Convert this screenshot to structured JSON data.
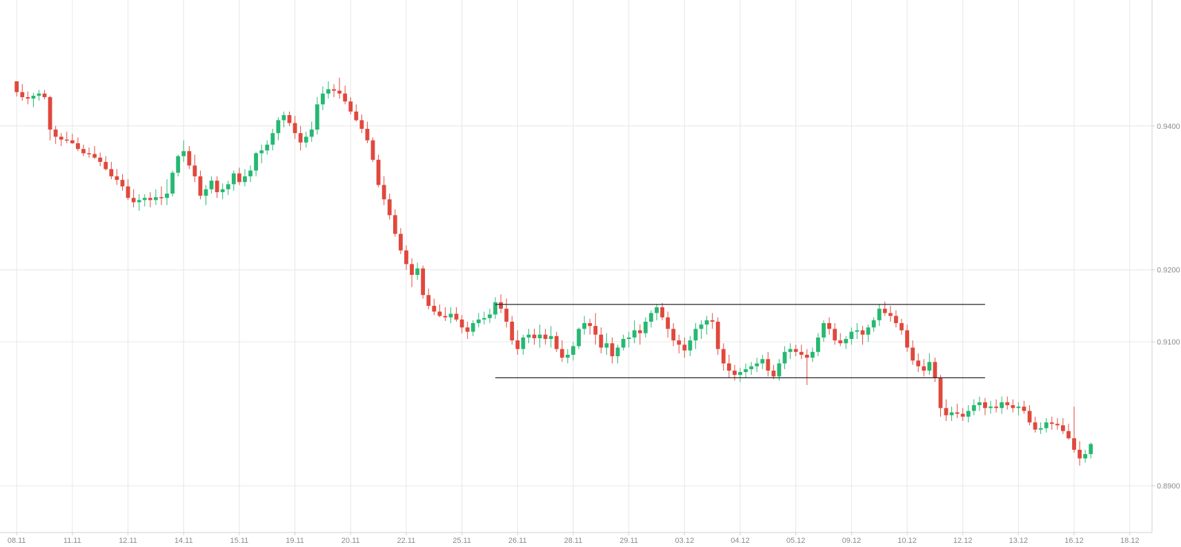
{
  "chart_data": {
    "type": "candlestick",
    "colors": {
      "up": "#26b872",
      "down": "#e0483d",
      "grid": "#e6e6e6",
      "axis": "#cfcfcf",
      "tick_text": "#8a8a8a",
      "level_line": "#222222"
    },
    "ylim": [
      0.8835,
      0.9575
    ],
    "yticks": [
      "0.9400",
      "0.9200",
      "0.9100",
      "0.8900"
    ],
    "y_tick_values": [
      0.94,
      0.92,
      0.91,
      0.89
    ],
    "xlim": [
      -3,
      204
    ],
    "xticks": [
      {
        "label": "08.11",
        "index": 0
      },
      {
        "label": "11.11",
        "index": 10
      },
      {
        "label": "12.11",
        "index": 20
      },
      {
        "label": "14.11",
        "index": 30
      },
      {
        "label": "15.11",
        "index": 40
      },
      {
        "label": "19.11",
        "index": 50
      },
      {
        "label": "20.11",
        "index": 60
      },
      {
        "label": "22.11",
        "index": 70
      },
      {
        "label": "25.11",
        "index": 80
      },
      {
        "label": "26.11",
        "index": 90
      },
      {
        "label": "28.11",
        "index": 100
      },
      {
        "label": "29.11",
        "index": 110
      },
      {
        "label": "03.12",
        "index": 120
      },
      {
        "label": "04.12",
        "index": 130
      },
      {
        "label": "05.12",
        "index": 140
      },
      {
        "label": "09.12",
        "index": 150
      },
      {
        "label": "10.12",
        "index": 160
      },
      {
        "label": "12.12",
        "index": 170
      },
      {
        "label": "13.12",
        "index": 180
      },
      {
        "label": "16.12",
        "index": 190
      },
      {
        "label": "18.12",
        "index": 200
      }
    ],
    "levels": [
      {
        "value": 0.9152,
        "from_index": 86,
        "to_index": 174
      },
      {
        "value": 0.905,
        "from_index": 86,
        "to_index": 174
      }
    ],
    "candles": [
      [
        0.9462,
        0.9462,
        0.9441,
        0.9447
      ],
      [
        0.9447,
        0.9458,
        0.9435,
        0.944
      ],
      [
        0.944,
        0.9448,
        0.943,
        0.9438
      ],
      [
        0.9438,
        0.9446,
        0.9426,
        0.9442
      ],
      [
        0.9442,
        0.945,
        0.9435,
        0.9445
      ],
      [
        0.9445,
        0.945,
        0.9437,
        0.944
      ],
      [
        0.944,
        0.9442,
        0.938,
        0.9395
      ],
      [
        0.9395,
        0.94,
        0.9375,
        0.9385
      ],
      [
        0.9385,
        0.939,
        0.9372,
        0.9381
      ],
      [
        0.9381,
        0.9392,
        0.9376,
        0.938
      ],
      [
        0.938,
        0.9389,
        0.9375,
        0.9376
      ],
      [
        0.9376,
        0.9384,
        0.9365,
        0.9368
      ],
      [
        0.9368,
        0.9374,
        0.9358,
        0.9362
      ],
      [
        0.9362,
        0.937,
        0.9356,
        0.9361
      ],
      [
        0.9361,
        0.9372,
        0.9354,
        0.9356
      ],
      [
        0.9356,
        0.9363,
        0.9344,
        0.935
      ],
      [
        0.935,
        0.9358,
        0.9338,
        0.934
      ],
      [
        0.934,
        0.935,
        0.9326,
        0.933
      ],
      [
        0.933,
        0.934,
        0.9318,
        0.9325
      ],
      [
        0.9325,
        0.9333,
        0.931,
        0.9316
      ],
      [
        0.9316,
        0.9326,
        0.9297,
        0.93
      ],
      [
        0.93,
        0.9312,
        0.9287,
        0.9294
      ],
      [
        0.9294,
        0.9305,
        0.9282,
        0.9297
      ],
      [
        0.9297,
        0.9305,
        0.9288,
        0.93
      ],
      [
        0.93,
        0.9308,
        0.9287,
        0.9297
      ],
      [
        0.9297,
        0.9312,
        0.929,
        0.9301
      ],
      [
        0.9301,
        0.9316,
        0.929,
        0.93
      ],
      [
        0.93,
        0.9326,
        0.929,
        0.9306
      ],
      [
        0.9306,
        0.9338,
        0.9302,
        0.9335
      ],
      [
        0.9335,
        0.936,
        0.933,
        0.9358
      ],
      [
        0.9358,
        0.938,
        0.935,
        0.9365
      ],
      [
        0.9365,
        0.9372,
        0.934,
        0.9345
      ],
      [
        0.9345,
        0.936,
        0.9322,
        0.933
      ],
      [
        0.933,
        0.9338,
        0.9298,
        0.9303
      ],
      [
        0.9303,
        0.9318,
        0.929,
        0.9312
      ],
      [
        0.9312,
        0.933,
        0.9306,
        0.9324
      ],
      [
        0.9324,
        0.933,
        0.93,
        0.9308
      ],
      [
        0.9308,
        0.932,
        0.9298,
        0.9312
      ],
      [
        0.9312,
        0.9324,
        0.9304,
        0.9319
      ],
      [
        0.9319,
        0.9338,
        0.931,
        0.9334
      ],
      [
        0.9334,
        0.9342,
        0.9318,
        0.9322
      ],
      [
        0.9322,
        0.934,
        0.9316,
        0.933
      ],
      [
        0.933,
        0.9345,
        0.9322,
        0.9338
      ],
      [
        0.9338,
        0.9364,
        0.933,
        0.9362
      ],
      [
        0.9362,
        0.9374,
        0.9348,
        0.9366
      ],
      [
        0.9366,
        0.938,
        0.936,
        0.9374
      ],
      [
        0.9374,
        0.9396,
        0.9366,
        0.939
      ],
      [
        0.939,
        0.9412,
        0.938,
        0.9408
      ],
      [
        0.9408,
        0.942,
        0.9398,
        0.9415
      ],
      [
        0.9415,
        0.942,
        0.94,
        0.9404
      ],
      [
        0.9404,
        0.9414,
        0.9382,
        0.939
      ],
      [
        0.939,
        0.94,
        0.9366,
        0.9377
      ],
      [
        0.9377,
        0.9392,
        0.937,
        0.9385
      ],
      [
        0.9385,
        0.9406,
        0.9378,
        0.9395
      ],
      [
        0.9395,
        0.944,
        0.9388,
        0.943
      ],
      [
        0.943,
        0.9455,
        0.9422,
        0.9445
      ],
      [
        0.9445,
        0.9462,
        0.9438,
        0.9451
      ],
      [
        0.9451,
        0.9458,
        0.944,
        0.9449
      ],
      [
        0.9449,
        0.9467,
        0.9438,
        0.9445
      ],
      [
        0.9445,
        0.9456,
        0.943,
        0.9434
      ],
      [
        0.9434,
        0.944,
        0.9416,
        0.942
      ],
      [
        0.942,
        0.943,
        0.9406,
        0.9408
      ],
      [
        0.9408,
        0.9416,
        0.939,
        0.9396
      ],
      [
        0.9396,
        0.9406,
        0.9376,
        0.938
      ],
      [
        0.938,
        0.9384,
        0.935,
        0.9353
      ],
      [
        0.9353,
        0.936,
        0.9315,
        0.9318
      ],
      [
        0.9318,
        0.933,
        0.929,
        0.9298
      ],
      [
        0.9298,
        0.9306,
        0.927,
        0.9276
      ],
      [
        0.9276,
        0.9284,
        0.9246,
        0.925
      ],
      [
        0.925,
        0.9258,
        0.9222,
        0.9227
      ],
      [
        0.9227,
        0.9234,
        0.92,
        0.9208
      ],
      [
        0.9208,
        0.9216,
        0.9176,
        0.9193
      ],
      [
        0.9193,
        0.921,
        0.9186,
        0.9202
      ],
      [
        0.9202,
        0.9206,
        0.916,
        0.9165
      ],
      [
        0.9165,
        0.9174,
        0.9145,
        0.915
      ],
      [
        0.915,
        0.916,
        0.9137,
        0.9142
      ],
      [
        0.9142,
        0.9152,
        0.9134,
        0.9136
      ],
      [
        0.9136,
        0.9148,
        0.9129,
        0.9134
      ],
      [
        0.9134,
        0.9148,
        0.9126,
        0.9139
      ],
      [
        0.9139,
        0.9148,
        0.9128,
        0.9131
      ],
      [
        0.9131,
        0.9137,
        0.9112,
        0.912
      ],
      [
        0.912,
        0.9128,
        0.9104,
        0.9114
      ],
      [
        0.9114,
        0.913,
        0.9108,
        0.9126
      ],
      [
        0.9126,
        0.914,
        0.912,
        0.9131
      ],
      [
        0.9131,
        0.9142,
        0.9124,
        0.9133
      ],
      [
        0.9133,
        0.9146,
        0.9126,
        0.9138
      ],
      [
        0.9138,
        0.9162,
        0.9132,
        0.9155
      ],
      [
        0.9155,
        0.9166,
        0.914,
        0.9146
      ],
      [
        0.9146,
        0.916,
        0.912,
        0.9128
      ],
      [
        0.9128,
        0.9136,
        0.9096,
        0.9102
      ],
      [
        0.9102,
        0.9116,
        0.9082,
        0.909
      ],
      [
        0.909,
        0.911,
        0.9082,
        0.9106
      ],
      [
        0.9106,
        0.9118,
        0.9098,
        0.911
      ],
      [
        0.911,
        0.9118,
        0.9096,
        0.9105
      ],
      [
        0.9105,
        0.9124,
        0.9092,
        0.911
      ],
      [
        0.911,
        0.9118,
        0.9096,
        0.9104
      ],
      [
        0.9104,
        0.9122,
        0.9092,
        0.9108
      ],
      [
        0.9108,
        0.9114,
        0.9086,
        0.909
      ],
      [
        0.909,
        0.9102,
        0.9072,
        0.9078
      ],
      [
        0.9078,
        0.909,
        0.907,
        0.9082
      ],
      [
        0.9082,
        0.91,
        0.9074,
        0.9094
      ],
      [
        0.9094,
        0.912,
        0.909,
        0.9118
      ],
      [
        0.9118,
        0.9136,
        0.911,
        0.9126
      ],
      [
        0.9126,
        0.9132,
        0.911,
        0.9122
      ],
      [
        0.9122,
        0.914,
        0.9096,
        0.911
      ],
      [
        0.911,
        0.912,
        0.9084,
        0.9092
      ],
      [
        0.9092,
        0.9112,
        0.9082,
        0.9098
      ],
      [
        0.9098,
        0.9106,
        0.907,
        0.908
      ],
      [
        0.908,
        0.9096,
        0.907,
        0.9092
      ],
      [
        0.9092,
        0.911,
        0.9088,
        0.9104
      ],
      [
        0.9104,
        0.9114,
        0.9092,
        0.9106
      ],
      [
        0.9106,
        0.913,
        0.9098,
        0.9116
      ],
      [
        0.9116,
        0.9124,
        0.9096,
        0.9112
      ],
      [
        0.9112,
        0.9134,
        0.9106,
        0.9128
      ],
      [
        0.9128,
        0.9144,
        0.912,
        0.914
      ],
      [
        0.914,
        0.9152,
        0.913,
        0.9148
      ],
      [
        0.9148,
        0.9154,
        0.913,
        0.9134
      ],
      [
        0.9134,
        0.9142,
        0.9106,
        0.9118
      ],
      [
        0.9118,
        0.9126,
        0.9094,
        0.9102
      ],
      [
        0.9102,
        0.911,
        0.9084,
        0.9096
      ],
      [
        0.9096,
        0.9106,
        0.9078,
        0.9088
      ],
      [
        0.9088,
        0.9108,
        0.908,
        0.9102
      ],
      [
        0.9102,
        0.9126,
        0.909,
        0.9118
      ],
      [
        0.9118,
        0.913,
        0.9104,
        0.9124
      ],
      [
        0.9124,
        0.9136,
        0.911,
        0.913
      ],
      [
        0.913,
        0.914,
        0.9118,
        0.9128
      ],
      [
        0.9128,
        0.9134,
        0.9082,
        0.909
      ],
      [
        0.909,
        0.9098,
        0.906,
        0.907
      ],
      [
        0.907,
        0.9082,
        0.905,
        0.906
      ],
      [
        0.906,
        0.9068,
        0.9046,
        0.9054
      ],
      [
        0.9054,
        0.9064,
        0.9044,
        0.9058
      ],
      [
        0.9058,
        0.907,
        0.905,
        0.9062
      ],
      [
        0.9062,
        0.9072,
        0.9054,
        0.9066
      ],
      [
        0.9066,
        0.9078,
        0.9058,
        0.907
      ],
      [
        0.907,
        0.9082,
        0.9062,
        0.9076
      ],
      [
        0.9076,
        0.9086,
        0.9052,
        0.906
      ],
      [
        0.906,
        0.9068,
        0.9048,
        0.9052
      ],
      [
        0.9052,
        0.9076,
        0.9046,
        0.907
      ],
      [
        0.907,
        0.9094,
        0.9062,
        0.9086
      ],
      [
        0.9086,
        0.9098,
        0.9076,
        0.909
      ],
      [
        0.909,
        0.9096,
        0.908,
        0.9086
      ],
      [
        0.9086,
        0.9096,
        0.9076,
        0.9082
      ],
      [
        0.9082,
        0.909,
        0.904,
        0.9078
      ],
      [
        0.9078,
        0.9092,
        0.9072,
        0.9086
      ],
      [
        0.9086,
        0.9112,
        0.908,
        0.9106
      ],
      [
        0.9106,
        0.913,
        0.91,
        0.9126
      ],
      [
        0.9126,
        0.9134,
        0.911,
        0.9118
      ],
      [
        0.9118,
        0.9126,
        0.9096,
        0.9102
      ],
      [
        0.9102,
        0.9112,
        0.9094,
        0.9098
      ],
      [
        0.9098,
        0.9108,
        0.909,
        0.9104
      ],
      [
        0.9104,
        0.912,
        0.9096,
        0.9114
      ],
      [
        0.9114,
        0.9126,
        0.9104,
        0.9116
      ],
      [
        0.9116,
        0.9122,
        0.9096,
        0.911
      ],
      [
        0.911,
        0.9124,
        0.91,
        0.912
      ],
      [
        0.912,
        0.9134,
        0.9114,
        0.913
      ],
      [
        0.913,
        0.9152,
        0.9122,
        0.9146
      ],
      [
        0.9146,
        0.9156,
        0.9136,
        0.914
      ],
      [
        0.914,
        0.915,
        0.9128,
        0.9136
      ],
      [
        0.9136,
        0.9144,
        0.912,
        0.9126
      ],
      [
        0.9126,
        0.9132,
        0.911,
        0.9116
      ],
      [
        0.9116,
        0.9124,
        0.9086,
        0.9092
      ],
      [
        0.9092,
        0.9102,
        0.9068,
        0.9074
      ],
      [
        0.9074,
        0.9084,
        0.9058,
        0.9066
      ],
      [
        0.9066,
        0.9076,
        0.9052,
        0.906
      ],
      [
        0.906,
        0.9084,
        0.9054,
        0.9072
      ],
      [
        0.9072,
        0.9078,
        0.9044,
        0.905
      ],
      [
        0.905,
        0.9054,
        0.8996,
        0.9008
      ],
      [
        0.9008,
        0.902,
        0.899,
        0.8998
      ],
      [
        0.8998,
        0.901,
        0.899,
        0.9002
      ],
      [
        0.9002,
        0.9014,
        0.8994,
        0.9
      ],
      [
        0.9,
        0.9008,
        0.899,
        0.8996
      ],
      [
        0.8996,
        0.9012,
        0.8988,
        0.9004
      ],
      [
        0.9004,
        0.902,
        0.8998,
        0.9012
      ],
      [
        0.9012,
        0.9024,
        0.9004,
        0.9016
      ],
      [
        0.9016,
        0.9022,
        0.8998,
        0.9008
      ],
      [
        0.9008,
        0.9018,
        0.9,
        0.901
      ],
      [
        0.901,
        0.902,
        0.9002,
        0.9008
      ],
      [
        0.9008,
        0.9024,
        0.9,
        0.9016
      ],
      [
        0.9016,
        0.9024,
        0.9006,
        0.9012
      ],
      [
        0.9012,
        0.902,
        0.9002,
        0.9008
      ],
      [
        0.9008,
        0.9016,
        0.8998,
        0.901
      ],
      [
        0.901,
        0.9018,
        0.9,
        0.9004
      ],
      [
        0.9004,
        0.9012,
        0.8984,
        0.8988
      ],
      [
        0.8988,
        0.8996,
        0.8974,
        0.8978
      ],
      [
        0.8978,
        0.8988,
        0.8972,
        0.898
      ],
      [
        0.898,
        0.8994,
        0.8974,
        0.8988
      ],
      [
        0.8988,
        0.8996,
        0.8978,
        0.8986
      ],
      [
        0.8986,
        0.8994,
        0.8978,
        0.8984
      ],
      [
        0.8984,
        0.8994,
        0.8972,
        0.8976
      ],
      [
        0.8976,
        0.8986,
        0.8964,
        0.8966
      ],
      [
        0.8966,
        0.901,
        0.8946,
        0.895
      ],
      [
        0.895,
        0.8962,
        0.8928,
        0.8938
      ],
      [
        0.8938,
        0.895,
        0.8932,
        0.8944
      ],
      [
        0.8944,
        0.896,
        0.8938,
        0.8958
      ]
    ]
  }
}
